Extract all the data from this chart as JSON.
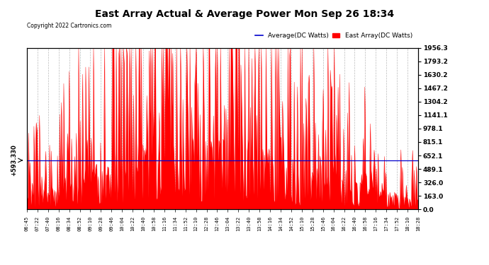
{
  "title": "East Array Actual & Average Power Mon Sep 26 18:34",
  "copyright": "Copyright 2022 Cartronics.com",
  "legend_avg": "Average(DC Watts)",
  "legend_east": "East Array(DC Watts)",
  "legend_avg_color": "#0000cc",
  "legend_east_color": "#ff0000",
  "ymax": 1956.3,
  "yticks": [
    0.0,
    163.0,
    326.0,
    489.1,
    652.1,
    815.1,
    978.1,
    1141.1,
    1304.2,
    1467.2,
    1630.2,
    1793.2,
    1956.3
  ],
  "hline_value": 593.33,
  "hline_label": "+593.330",
  "bg_color": "#ffffff",
  "grid_color": "#aaaaaa",
  "xtick_labels": [
    "06:45",
    "07:22",
    "07:40",
    "08:16",
    "08:34",
    "08:52",
    "09:10",
    "09:28",
    "09:46",
    "10:04",
    "10:22",
    "10:40",
    "10:58",
    "11:16",
    "11:34",
    "11:52",
    "12:10",
    "12:28",
    "12:46",
    "13:04",
    "13:22",
    "13:40",
    "13:58",
    "14:16",
    "14:34",
    "14:52",
    "15:10",
    "15:28",
    "15:46",
    "16:04",
    "16:22",
    "16:40",
    "16:58",
    "17:16",
    "17:34",
    "17:52",
    "18:10",
    "18:28"
  ],
  "figsize": [
    6.9,
    3.75
  ],
  "dpi": 100
}
